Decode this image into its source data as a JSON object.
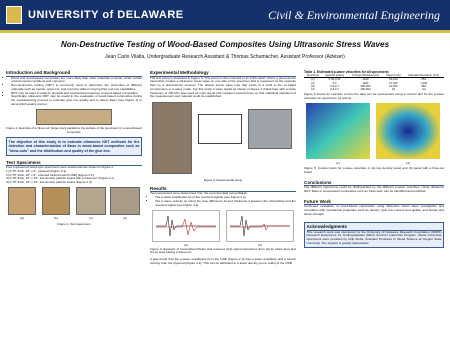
{
  "header": {
    "university": "UNIVERSITY of DELAWARE",
    "department": "Civil & Environmental Engineering"
  },
  "title": "Non-Destructive Testing of Wood-Based Composites Using Ultrasonic Stress Waves",
  "authors": "Jean Carlo Vilalta, Undergraduate Research Assistant & Thomas Schumacher, Assistant Professor (Adviser)",
  "intro": {
    "heading": "Introduction and Background",
    "bullets": [
      "Wood and wood-based composites are more likely than other materials to decay under certain environmental conditions and exposure.",
      "Non-destructive testing (NDT) is commonly used to determine the properties of different materials such as metals, polymers, and concrete without varying their end use capabilities.",
      "NDT may be used to analyze physical and mechanical properties of wood-based composites.",
      "Specifically, ultrasonic NDT may be useful in the evaluation of wood-based composites during the manufacturing process to estimate glue line quality and to detect flaws (see Figure 1) to accomplish quality control."
    ],
    "figure_caption": "Figure 1. Example of a 'blow-out' (large crack parallel to the surface of the specimen) in a wood-based composite."
  },
  "objective": "The objective of this study is to evaluate ultrasonic NDT methods for the detection and characterization of flaws in wood-based composites such as \"blow-outs\" and the distribution and quality of the glue line.",
  "specimens": {
    "heading": "Test Specimens",
    "text": "Four engineered wood-type specimens were tested and are shown in Figure 2:",
    "list": [
      "1) 0.75\" thick, 18\" x 9\", plywood (Figure 2 a)",
      "2) 0.75\" thick, 18\" x 9\", oriented strand board (OSB) (Figure 2 b)",
      "3) 0.75\" thick, 16\" x 16\", low-density particle board with a 'blow-out' (Figure 2 c)",
      "4) 0.75\" thick, 16\" x 16\", low-density particle board (Figure 2 d)"
    ],
    "panel_labels": [
      "(a)",
      "(b)",
      "(c)",
      "(d)"
    ],
    "figure_caption": "Figure 2. Test specimens"
  },
  "methodology": {
    "heading": "Experimental Methodology",
    "text": "The test setup is illustrated in Figure 3. This setup is often referred to as 'pitch-catch' where a piezoelectric transmitter creates a ultrasonic stress wave on one side of the specimen that is measured on the opposite face by a piezoelectric receiver. The fastest stress wave type that exists in a solid is the so-called compression or p-wave mode. For this study a wave signal as shown in Figure 4 (black line) with a pulse frequency of 100 kHz was used as input signal and repeated several times so that statistical variations of the measurement and material could be established.",
    "figure_caption": "Figure 3. Experimental setup"
  },
  "results": {
    "heading": "Results",
    "text": "Two parameters were determined from the recorded data using Matlab:",
    "bullets": [
      "The p-wave amplitudes Ap of the received signals (see Figure 4 a)",
      "The p-wave velocity cp using the time difference Δt and thickness d between the transmitted and the received signal (see Figure 4 a)"
    ],
    "panel_labels": [
      "(a)",
      "(b)"
    ],
    "figure_caption": "Figure 4. Example of transmitted (black) and received (red) signal waveforms from (a) an intact area and (b) an area having a 'blow-out'",
    "text2": "It was found that the p-wave amplitudes from the OSB (Figure 2 b) had a lower amplitude and a slower velocity than the plywood (Figure 2 a). This can be attributed to a lower density (more voids) of the OSB."
  },
  "table": {
    "caption": "Table 1. Estimated p-wave velocities for all specimens",
    "columns": [
      "Specimen",
      "Specific gravity",
      "Young's Modulus (psi)",
      "Mean (m/s)",
      "Standard Deviation (m/s)"
    ],
    "rows": [
      [
        "(1)",
        "0.45-0.52",
        "1640",
        "62,100",
        "653"
      ],
      [
        "(2)",
        "0.6",
        "1180",
        "27,200",
        "1,320"
      ],
      [
        "(3)",
        "0.6-0.7",
        "400-900",
        "20,050",
        "984"
      ],
      [
        "(4)",
        "0.6-0.7",
        "400-900",
        "40",
        "n/a"
      ]
    ]
  },
  "figure5": {
    "text": "Figure 5 shows an example of how the data can be represented using a contour plot for the p-wave velocities for specimens (c) and d).",
    "panel_labels": [
      "(c)",
      "(d)"
    ],
    "caption": "Figure 5. Contour plots for p-wave velocities in (a) low density panel and (b) panel with a blow-out board"
  },
  "conclusions": {
    "heading": "Conclusions",
    "text": "The different specimens could be distinguished by the different p-wave velocities. Using ultrasonic NDT, flaws in wood-based composites such as 'blow-outs' can be identified and localized."
  },
  "future": {
    "heading": "Future Work",
    "text": "Continued evaluation of wood-based composites using ultrasonic stress wave propagation and correlation with mechanical properties such as density, glue line content and quality, and tensile and shear strength."
  },
  "acknowledgments": {
    "heading": "Acknowledgments",
    "text": "This research work was sponsored by the University of Delaware Research Foundation (UDRF) Research Experience for Undergraduates (REU) Summer Internship Program. Wood composite specimens were provided by Arijit Sinha, Assistant Professor in Wood Science at Oregon State University. The support is greatly appreciated."
  }
}
